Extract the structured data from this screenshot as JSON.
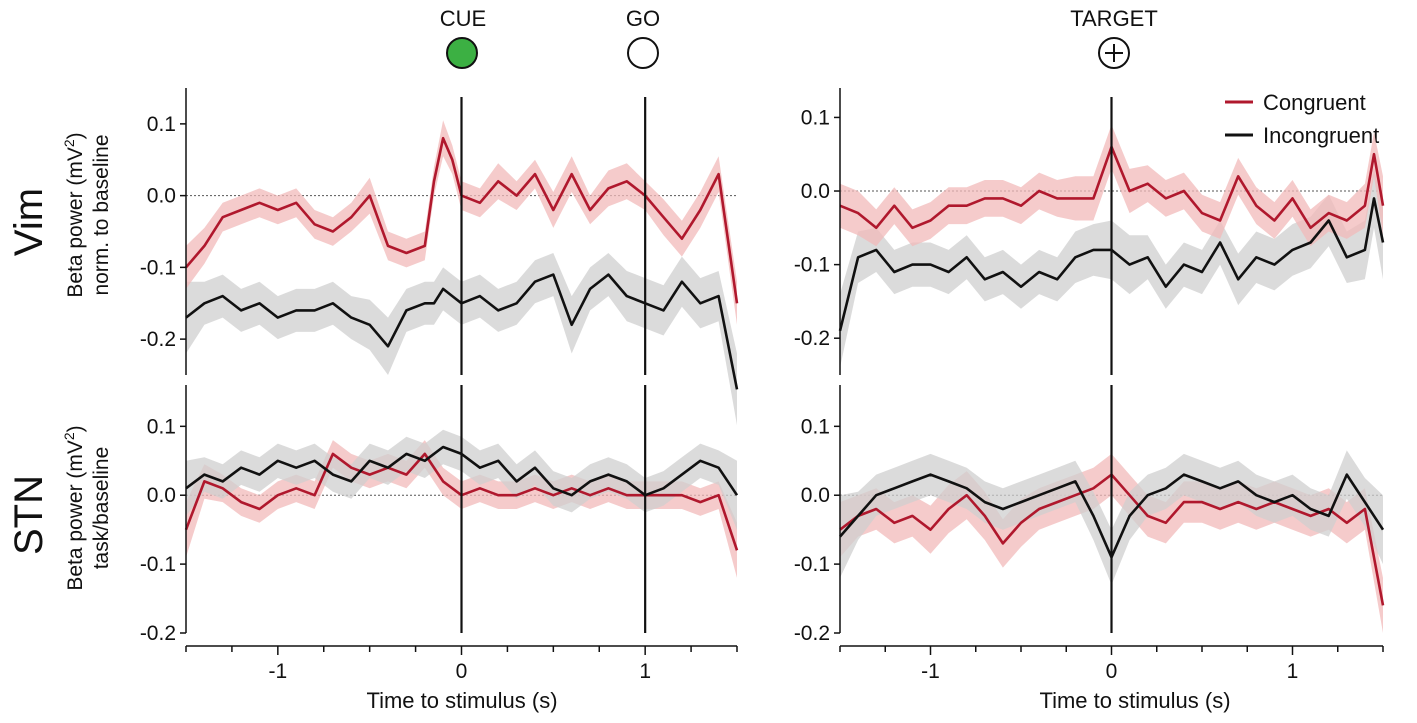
{
  "figure": {
    "markers": {
      "cue_label": "CUE",
      "go_label": "GO",
      "target_label": "TARGET",
      "cue_color": "#3cb043"
    },
    "row_labels": {
      "top": "Vim",
      "bottom": "STN"
    },
    "ylabels": {
      "top_line1": "Beta power (mV",
      "top_line2": "norm. to baseline",
      "bottom_line1": "Beta power (mV",
      "bottom_line2": "task/baseline",
      "superscript": "2",
      "close_paren": ")"
    },
    "xlabel": "Time to stimulus (s)",
    "legend": {
      "position": "top-right",
      "congruent": "Congruent",
      "incongruent": "Incongruent"
    },
    "colors": {
      "congruent": "#b0182d",
      "congruent_band": "#f2b9b9",
      "incongruent": "#111111",
      "incongruent_band": "#cfcfcf"
    }
  },
  "chart_data": [
    {
      "id": "vim-cue",
      "type": "line",
      "xlim": [
        -1.5,
        1.5
      ],
      "ylim": [
        -0.25,
        0.15
      ],
      "xticks": [
        -1,
        0,
        1
      ],
      "xtick_labels": [
        "-1",
        "0",
        "1"
      ],
      "yticks": [
        0.1,
        0.0,
        -0.1,
        -0.2
      ],
      "ytick_labels": [
        "0.1",
        "0.0",
        "-0.1",
        "-0.2"
      ],
      "vlines": [
        0,
        1
      ],
      "hline": 0,
      "x": [
        -1.5,
        -1.4,
        -1.3,
        -1.2,
        -1.1,
        -1.0,
        -0.9,
        -0.8,
        -0.7,
        -0.6,
        -0.5,
        -0.4,
        -0.3,
        -0.2,
        -0.15,
        -0.1,
        -0.05,
        0.0,
        0.1,
        0.2,
        0.3,
        0.4,
        0.5,
        0.6,
        0.7,
        0.8,
        0.9,
        1.0,
        1.1,
        1.2,
        1.3,
        1.4,
        1.5
      ],
      "series": [
        {
          "name": "Congruent",
          "values": [
            -0.1,
            -0.07,
            -0.03,
            -0.02,
            -0.01,
            -0.02,
            -0.01,
            -0.04,
            -0.05,
            -0.03,
            0.0,
            -0.07,
            -0.08,
            -0.07,
            0.02,
            0.08,
            0.05,
            0.0,
            -0.01,
            0.02,
            0.0,
            0.03,
            -0.02,
            0.03,
            -0.02,
            0.01,
            0.02,
            0.0,
            -0.03,
            -0.06,
            -0.02,
            0.03,
            -0.15
          ],
          "err": [
            0.03,
            0.025,
            0.02,
            0.02,
            0.02,
            0.02,
            0.02,
            0.02,
            0.02,
            0.02,
            0.025,
            0.02,
            0.02,
            0.02,
            0.02,
            0.025,
            0.02,
            0.02,
            0.02,
            0.025,
            0.02,
            0.02,
            0.025,
            0.025,
            0.02,
            0.025,
            0.025,
            0.02,
            0.025,
            0.025,
            0.025,
            0.025,
            0.03
          ]
        },
        {
          "name": "Incongruent",
          "values": [
            -0.17,
            -0.15,
            -0.14,
            -0.16,
            -0.15,
            -0.17,
            -0.16,
            -0.16,
            -0.15,
            -0.17,
            -0.18,
            -0.21,
            -0.16,
            -0.15,
            -0.15,
            -0.13,
            -0.14,
            -0.15,
            -0.14,
            -0.16,
            -0.15,
            -0.12,
            -0.11,
            -0.18,
            -0.13,
            -0.11,
            -0.14,
            -0.15,
            -0.16,
            -0.12,
            -0.15,
            -0.14,
            -0.27
          ],
          "err": [
            0.05,
            0.03,
            0.03,
            0.03,
            0.03,
            0.03,
            0.03,
            0.03,
            0.03,
            0.03,
            0.035,
            0.04,
            0.03,
            0.03,
            0.03,
            0.03,
            0.03,
            0.03,
            0.03,
            0.03,
            0.03,
            0.03,
            0.03,
            0.04,
            0.03,
            0.03,
            0.035,
            0.035,
            0.035,
            0.035,
            0.035,
            0.035,
            0.05
          ]
        }
      ]
    },
    {
      "id": "vim-target",
      "type": "line",
      "xlim": [
        -1.5,
        1.5
      ],
      "ylim": [
        -0.25,
        0.14
      ],
      "xticks": [
        -1,
        0,
        1
      ],
      "xtick_labels": [
        "-1",
        "0",
        "1"
      ],
      "yticks": [
        0.1,
        0.0,
        -0.1,
        -0.2
      ],
      "ytick_labels": [
        "0.1",
        "0.0",
        "-0.1",
        "-0.2"
      ],
      "vlines": [
        0
      ],
      "hline": 0,
      "x": [
        -1.5,
        -1.4,
        -1.3,
        -1.2,
        -1.1,
        -1.0,
        -0.9,
        -0.8,
        -0.7,
        -0.6,
        -0.5,
        -0.4,
        -0.3,
        -0.2,
        -0.1,
        0.0,
        0.1,
        0.2,
        0.3,
        0.4,
        0.5,
        0.6,
        0.7,
        0.8,
        0.9,
        1.0,
        1.1,
        1.2,
        1.3,
        1.4,
        1.45,
        1.5
      ],
      "series": [
        {
          "name": "Congruent",
          "values": [
            -0.02,
            -0.03,
            -0.05,
            -0.02,
            -0.05,
            -0.04,
            -0.02,
            -0.02,
            -0.01,
            -0.01,
            -0.02,
            0.0,
            -0.01,
            -0.01,
            -0.01,
            0.06,
            0.0,
            0.01,
            -0.01,
            0.0,
            -0.03,
            -0.04,
            0.02,
            -0.02,
            -0.04,
            -0.01,
            -0.05,
            -0.03,
            -0.04,
            -0.02,
            0.05,
            -0.02
          ],
          "err": [
            0.03,
            0.03,
            0.025,
            0.025,
            0.025,
            0.025,
            0.025,
            0.025,
            0.025,
            0.025,
            0.025,
            0.025,
            0.025,
            0.03,
            0.03,
            0.03,
            0.03,
            0.025,
            0.025,
            0.025,
            0.025,
            0.025,
            0.025,
            0.025,
            0.025,
            0.025,
            0.025,
            0.025,
            0.025,
            0.03,
            0.03,
            0.04
          ]
        },
        {
          "name": "Incongruent",
          "values": [
            -0.19,
            -0.09,
            -0.08,
            -0.11,
            -0.1,
            -0.1,
            -0.11,
            -0.09,
            -0.12,
            -0.11,
            -0.13,
            -0.11,
            -0.12,
            -0.09,
            -0.08,
            -0.08,
            -0.1,
            -0.09,
            -0.13,
            -0.1,
            -0.11,
            -0.07,
            -0.12,
            -0.09,
            -0.1,
            -0.08,
            -0.07,
            -0.04,
            -0.09,
            -0.08,
            -0.01,
            -0.07
          ],
          "err": [
            0.05,
            0.035,
            0.03,
            0.03,
            0.03,
            0.03,
            0.03,
            0.03,
            0.03,
            0.03,
            0.03,
            0.03,
            0.03,
            0.035,
            0.035,
            0.04,
            0.04,
            0.03,
            0.03,
            0.03,
            0.03,
            0.03,
            0.035,
            0.035,
            0.035,
            0.035,
            0.035,
            0.035,
            0.035,
            0.04,
            0.04,
            0.05
          ]
        }
      ]
    },
    {
      "id": "stn-cue",
      "type": "line",
      "xlim": [
        -1.5,
        1.5
      ],
      "ylim": [
        -0.2,
        0.16
      ],
      "xticks": [
        -1,
        0,
        1
      ],
      "xtick_labels": [
        "-1",
        "0",
        "1"
      ],
      "yticks": [
        0.1,
        0.0,
        -0.1,
        -0.2
      ],
      "ytick_labels": [
        "0.1",
        "0.0",
        "-0.1",
        "-0.2"
      ],
      "vlines": [
        0,
        1
      ],
      "hline": 0,
      "x": [
        -1.5,
        -1.4,
        -1.3,
        -1.2,
        -1.1,
        -1.0,
        -0.9,
        -0.8,
        -0.7,
        -0.6,
        -0.5,
        -0.4,
        -0.3,
        -0.2,
        -0.1,
        0.0,
        0.1,
        0.2,
        0.3,
        0.4,
        0.5,
        0.6,
        0.7,
        0.8,
        0.9,
        1.0,
        1.1,
        1.2,
        1.3,
        1.4,
        1.5
      ],
      "series": [
        {
          "name": "Congruent",
          "values": [
            -0.05,
            0.02,
            0.01,
            -0.01,
            -0.02,
            0.0,
            0.01,
            0.0,
            0.06,
            0.04,
            0.03,
            0.04,
            0.03,
            0.06,
            0.02,
            0.0,
            0.01,
            0.0,
            0.0,
            0.01,
            0.0,
            0.01,
            0.0,
            0.01,
            0.0,
            0.0,
            0.0,
            0.0,
            -0.01,
            0.0,
            -0.08
          ],
          "err": [
            0.04,
            0.025,
            0.02,
            0.02,
            0.02,
            0.02,
            0.02,
            0.02,
            0.02,
            0.02,
            0.02,
            0.02,
            0.02,
            0.02,
            0.02,
            0.02,
            0.02,
            0.02,
            0.02,
            0.02,
            0.02,
            0.02,
            0.02,
            0.02,
            0.02,
            0.02,
            0.02,
            0.02,
            0.02,
            0.02,
            0.04
          ]
        },
        {
          "name": "Incongruent",
          "values": [
            0.01,
            0.03,
            0.02,
            0.04,
            0.03,
            0.05,
            0.04,
            0.05,
            0.03,
            0.02,
            0.05,
            0.04,
            0.06,
            0.05,
            0.07,
            0.06,
            0.04,
            0.05,
            0.02,
            0.04,
            0.01,
            0.0,
            0.02,
            0.03,
            0.02,
            0.0,
            0.01,
            0.03,
            0.05,
            0.04,
            0.0
          ],
          "err": [
            0.04,
            0.025,
            0.025,
            0.025,
            0.025,
            0.025,
            0.025,
            0.025,
            0.025,
            0.025,
            0.025,
            0.025,
            0.025,
            0.025,
            0.025,
            0.025,
            0.025,
            0.025,
            0.025,
            0.025,
            0.025,
            0.025,
            0.025,
            0.025,
            0.025,
            0.025,
            0.025,
            0.025,
            0.025,
            0.025,
            0.05
          ]
        }
      ]
    },
    {
      "id": "stn-target",
      "type": "line",
      "xlim": [
        -1.5,
        1.5
      ],
      "ylim": [
        -0.2,
        0.16
      ],
      "xticks": [
        -1,
        0,
        1
      ],
      "xtick_labels": [
        "-1",
        "0",
        "1"
      ],
      "yticks": [
        0.1,
        0.0,
        -0.1,
        -0.2
      ],
      "ytick_labels": [
        "0.1",
        "0.0",
        "-0.1",
        "-0.2"
      ],
      "vlines": [
        0
      ],
      "hline": 0,
      "x": [
        -1.5,
        -1.4,
        -1.3,
        -1.2,
        -1.1,
        -1.0,
        -0.9,
        -0.8,
        -0.7,
        -0.6,
        -0.5,
        -0.4,
        -0.3,
        -0.2,
        -0.1,
        0.0,
        0.1,
        0.2,
        0.3,
        0.4,
        0.5,
        0.6,
        0.7,
        0.8,
        0.9,
        1.0,
        1.1,
        1.2,
        1.3,
        1.4,
        1.5
      ],
      "series": [
        {
          "name": "Congruent",
          "values": [
            -0.05,
            -0.03,
            -0.02,
            -0.04,
            -0.03,
            -0.05,
            -0.02,
            0.0,
            -0.03,
            -0.07,
            -0.04,
            -0.02,
            -0.01,
            0.0,
            0.01,
            0.03,
            0.0,
            -0.03,
            -0.04,
            -0.01,
            -0.01,
            -0.02,
            -0.01,
            -0.02,
            -0.01,
            -0.02,
            -0.03,
            -0.02,
            -0.04,
            -0.02,
            -0.16
          ],
          "err": [
            0.04,
            0.03,
            0.03,
            0.03,
            0.03,
            0.035,
            0.035,
            0.035,
            0.035,
            0.035,
            0.035,
            0.03,
            0.03,
            0.03,
            0.03,
            0.03,
            0.03,
            0.03,
            0.03,
            0.03,
            0.03,
            0.03,
            0.03,
            0.03,
            0.03,
            0.03,
            0.03,
            0.03,
            0.03,
            0.03,
            0.04
          ]
        },
        {
          "name": "Incongruent",
          "values": [
            -0.06,
            -0.03,
            0.0,
            0.01,
            0.02,
            0.03,
            0.02,
            0.01,
            -0.01,
            -0.02,
            -0.01,
            0.0,
            0.01,
            0.02,
            -0.03,
            -0.09,
            -0.03,
            0.0,
            0.01,
            0.03,
            0.02,
            0.01,
            0.02,
            0.0,
            -0.01,
            0.0,
            -0.02,
            -0.03,
            0.03,
            -0.01,
            -0.05
          ],
          "err": [
            0.06,
            0.035,
            0.03,
            0.03,
            0.03,
            0.03,
            0.03,
            0.03,
            0.03,
            0.03,
            0.03,
            0.03,
            0.03,
            0.03,
            0.035,
            0.04,
            0.035,
            0.03,
            0.03,
            0.03,
            0.03,
            0.03,
            0.03,
            0.03,
            0.03,
            0.03,
            0.03,
            0.03,
            0.035,
            0.035,
            0.05
          ]
        }
      ]
    }
  ]
}
